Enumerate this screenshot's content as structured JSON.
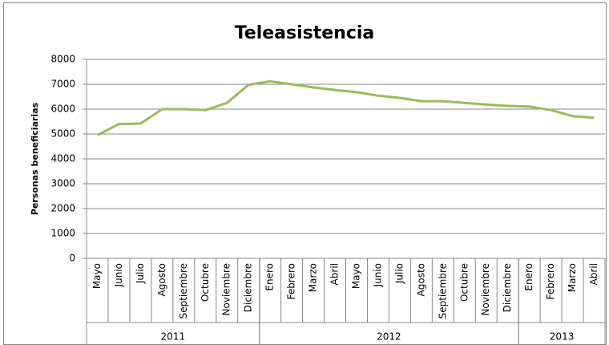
{
  "chart_data": {
    "type": "line",
    "title": "Teleasistencia",
    "y_label": "Personas beneficiarias",
    "categories": [
      "Mayo",
      "Junio",
      "Julio",
      "Agosto",
      "Septiembre",
      "Octubre",
      "Noviembre",
      "Diciembre",
      "Enero",
      "Febrero",
      "Marzo",
      "Abril",
      "Mayo",
      "Junio",
      "Julio",
      "Agosto",
      "Septiembre",
      "Octubre",
      "Noviembre",
      "Diciembre",
      "Enero",
      "Febrero",
      "Marzo",
      "Abril"
    ],
    "category_groups": [
      {
        "label": "2011",
        "size": 8
      },
      {
        "label": "2012",
        "size": 12
      },
      {
        "label": "2013",
        "size": 4
      }
    ],
    "series": [
      {
        "name": "Personas beneficiarias",
        "color": "#9bbb59",
        "values": [
          4950,
          5400,
          5420,
          6000,
          6000,
          5960,
          6250,
          6980,
          7120,
          7000,
          6870,
          6770,
          6680,
          6540,
          6450,
          6320,
          6320,
          6250,
          6180,
          6130,
          6100,
          5960,
          5720,
          5650
        ]
      }
    ],
    "ylim": [
      0,
      8000
    ],
    "yticks": [
      0,
      1000,
      2000,
      3000,
      4000,
      5000,
      6000,
      7000,
      8000
    ],
    "grid": true,
    "legend": false
  }
}
